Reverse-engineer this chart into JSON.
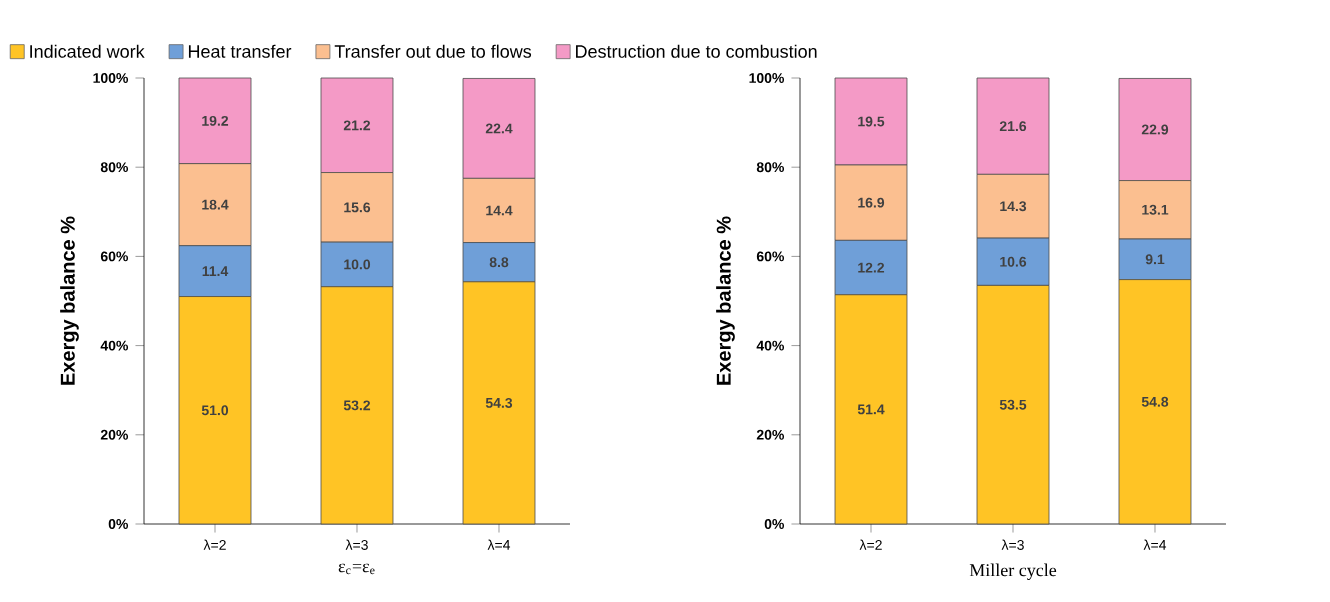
{
  "chart_data": [
    {
      "type": "bar",
      "stacked": true,
      "legend": "top",
      "ylabel": "Exergy balance %",
      "xlabel": "ε$_{c}$=ε$_{e}$",
      "categories": [
        "λ=2",
        "λ=3",
        "λ=4"
      ],
      "ylim": [
        0,
        100
      ],
      "yticks": [
        {
          "value": 0,
          "label": "0%"
        },
        {
          "value": 20,
          "label": "20%"
        },
        {
          "value": 40,
          "label": "40%"
        },
        {
          "value": 60,
          "label": "60%"
        },
        {
          "value": 80,
          "label": "80%"
        },
        {
          "value": 100,
          "label": "100%"
        }
      ],
      "series": [
        {
          "name": "Indicated work",
          "color": "#ffc425",
          "values": [
            51.0,
            53.2,
            54.3
          ],
          "value_labels": [
            "51.0",
            "53.2",
            "54.3"
          ]
        },
        {
          "name": "Heat transfer",
          "color": "#6f9fd8",
          "values": [
            11.4,
            10.0,
            8.8
          ],
          "value_labels": [
            "11.4",
            "10.0",
            "8.8"
          ]
        },
        {
          "name": "Transfer out due to flows",
          "color": "#fbbf90",
          "values": [
            18.4,
            15.6,
            14.4
          ],
          "value_labels": [
            "18.4",
            "15.6",
            "14.4"
          ]
        },
        {
          "name": "Destruction due to combustion",
          "color": "#f49ac6",
          "values": [
            19.2,
            21.2,
            22.4
          ],
          "value_labels": [
            "19.2",
            "21.2",
            "22.4"
          ]
        }
      ]
    },
    {
      "type": "bar",
      "stacked": true,
      "ylabel": "Exergy balance %",
      "xlabel": "Miller cycle",
      "categories": [
        "λ=2",
        "λ=3",
        "λ=4"
      ],
      "ylim": [
        0,
        100
      ],
      "yticks": [
        {
          "value": 0,
          "label": "0%"
        },
        {
          "value": 20,
          "label": "20%"
        },
        {
          "value": 40,
          "label": "40%"
        },
        {
          "value": 60,
          "label": "60%"
        },
        {
          "value": 80,
          "label": "80%"
        },
        {
          "value": 100,
          "label": "100%"
        }
      ],
      "series": [
        {
          "color": "#ffc425",
          "values": [
            51.4,
            53.5,
            54.8
          ],
          "value_labels": [
            "51.4",
            "53.5",
            "54.8"
          ]
        },
        {
          "color": "#6f9fd8",
          "values": [
            12.2,
            10.6,
            9.1
          ],
          "value_labels": [
            "12.2",
            "10.6",
            "9.1"
          ]
        },
        {
          "color": "#fbbf90",
          "values": [
            16.9,
            14.3,
            13.1
          ],
          "value_labels": [
            "16.9",
            "14.3",
            "13.1"
          ]
        },
        {
          "color": "#f49ac6",
          "values": [
            19.5,
            21.6,
            22.9
          ],
          "value_labels": [
            "19.5",
            "21.6",
            "22.9"
          ]
        }
      ]
    }
  ]
}
